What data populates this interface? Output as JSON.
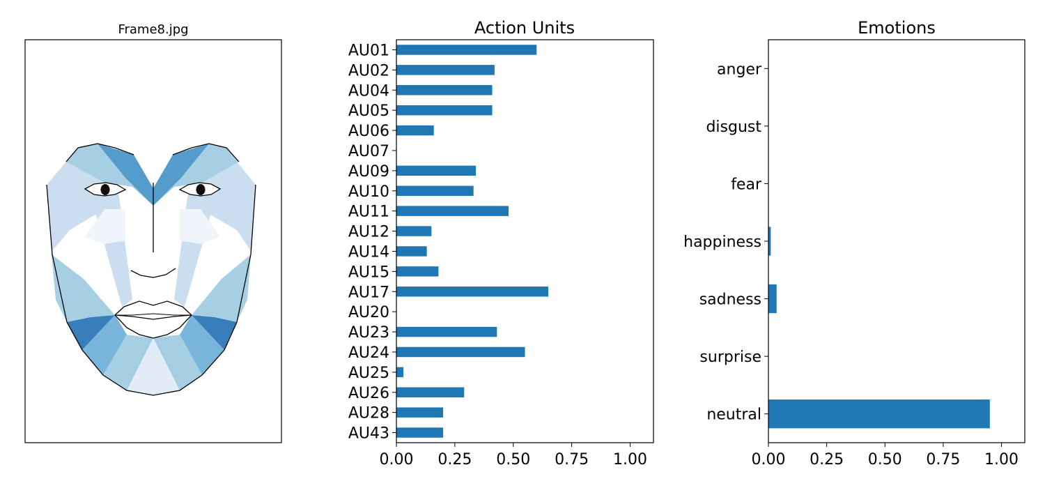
{
  "face_panel": {
    "title": "Frame8.jpg"
  },
  "chart_data": [
    {
      "type": "bar",
      "orientation": "horizontal",
      "title": "Action Units",
      "categories": [
        "AU01",
        "AU02",
        "AU04",
        "AU05",
        "AU06",
        "AU07",
        "AU09",
        "AU10",
        "AU11",
        "AU12",
        "AU14",
        "AU15",
        "AU17",
        "AU20",
        "AU23",
        "AU24",
        "AU25",
        "AU26",
        "AU28",
        "AU43"
      ],
      "values": [
        0.6,
        0.42,
        0.41,
        0.41,
        0.16,
        0.0,
        0.34,
        0.33,
        0.48,
        0.15,
        0.13,
        0.18,
        0.65,
        0.0,
        0.43,
        0.55,
        0.03,
        0.29,
        0.2,
        0.2
      ],
      "xlim": [
        0,
        1.1
      ],
      "xticks": [
        "0.00",
        "0.25",
        "0.50",
        "0.75",
        "1.00"
      ],
      "xtick_values": [
        0,
        0.25,
        0.5,
        0.75,
        1.0
      ],
      "color": "#1f77b4",
      "grid": false
    },
    {
      "type": "bar",
      "orientation": "horizontal",
      "title": "Emotions",
      "categories": [
        "anger",
        "disgust",
        "fear",
        "happiness",
        "sadness",
        "surprise",
        "neutral"
      ],
      "values": [
        0.0,
        0.0,
        0.0,
        0.01,
        0.035,
        0.0,
        0.95
      ],
      "xlim": [
        0,
        1.1
      ],
      "xticks": [
        "0.00",
        "0.25",
        "0.50",
        "0.75",
        "1.00"
      ],
      "xtick_values": [
        0,
        0.25,
        0.5,
        0.75,
        1.0
      ],
      "color": "#1f77b4",
      "grid": false
    }
  ]
}
